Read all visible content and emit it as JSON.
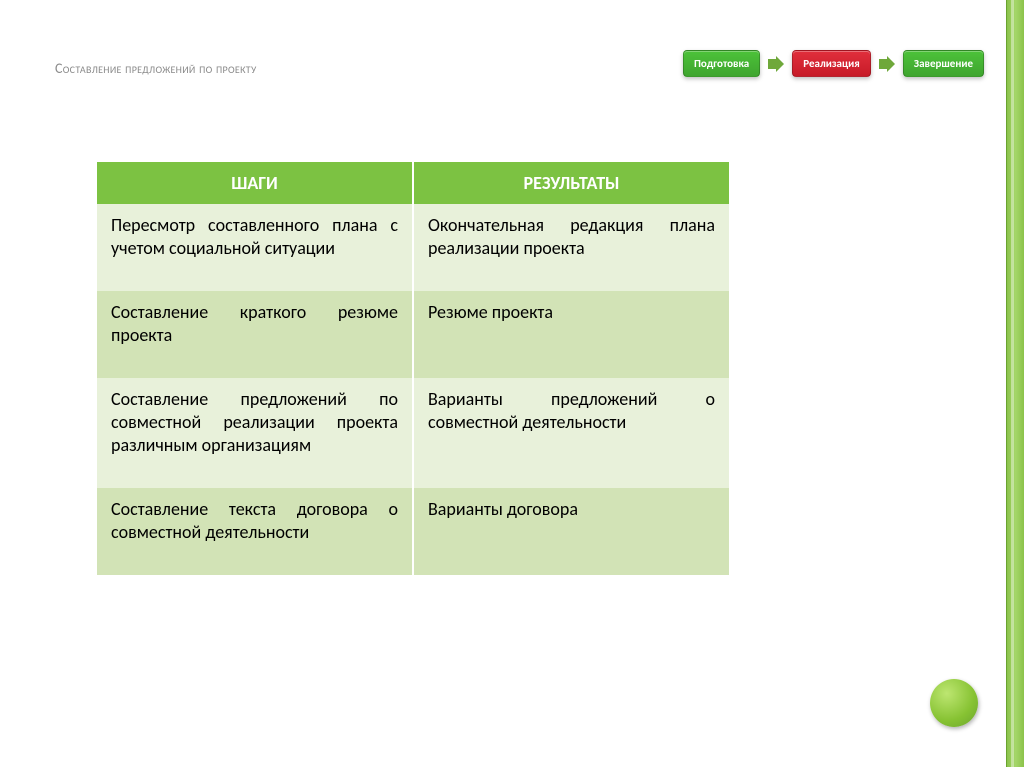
{
  "title": "Составление предложений по проекту",
  "stages": [
    {
      "label": "Подготовка",
      "bg": "#3fa52f",
      "bg2": "#4cc239"
    },
    {
      "label": "Реализация",
      "bg": "#c71b28",
      "bg2": "#e12f3c"
    },
    {
      "label": "Завершение",
      "bg": "#3fa52f",
      "bg2": "#4cc239"
    }
  ],
  "arrow_color": "#6fa83a",
  "table": {
    "header_bg": "#7cc242",
    "row_bg_light": "#e8f1da",
    "row_bg_dark": "#d2e3b6",
    "columns": [
      "ШАГИ",
      "РЕЗУЛЬТАТЫ"
    ],
    "col_widths": [
      "50%",
      "50%"
    ],
    "rows": [
      [
        "Пересмотр составленного плана с учетом социальной ситуации",
        "Окончательная редакция плана реализации проекта"
      ],
      [
        "Составление краткого резюме проекта",
        "Резюме проекта"
      ],
      [
        "Составление предложений по совместной реализации проекта различным организациям",
        "Варианты предложений о совместной деятельности"
      ],
      [
        "Составление текста договора о совместной деятельности",
        "Варианты договора"
      ]
    ]
  },
  "colors": {
    "title_text": "#8a8a8a",
    "cell_text": "#000000",
    "header_text": "#ffffff",
    "background": "#ffffff"
  }
}
